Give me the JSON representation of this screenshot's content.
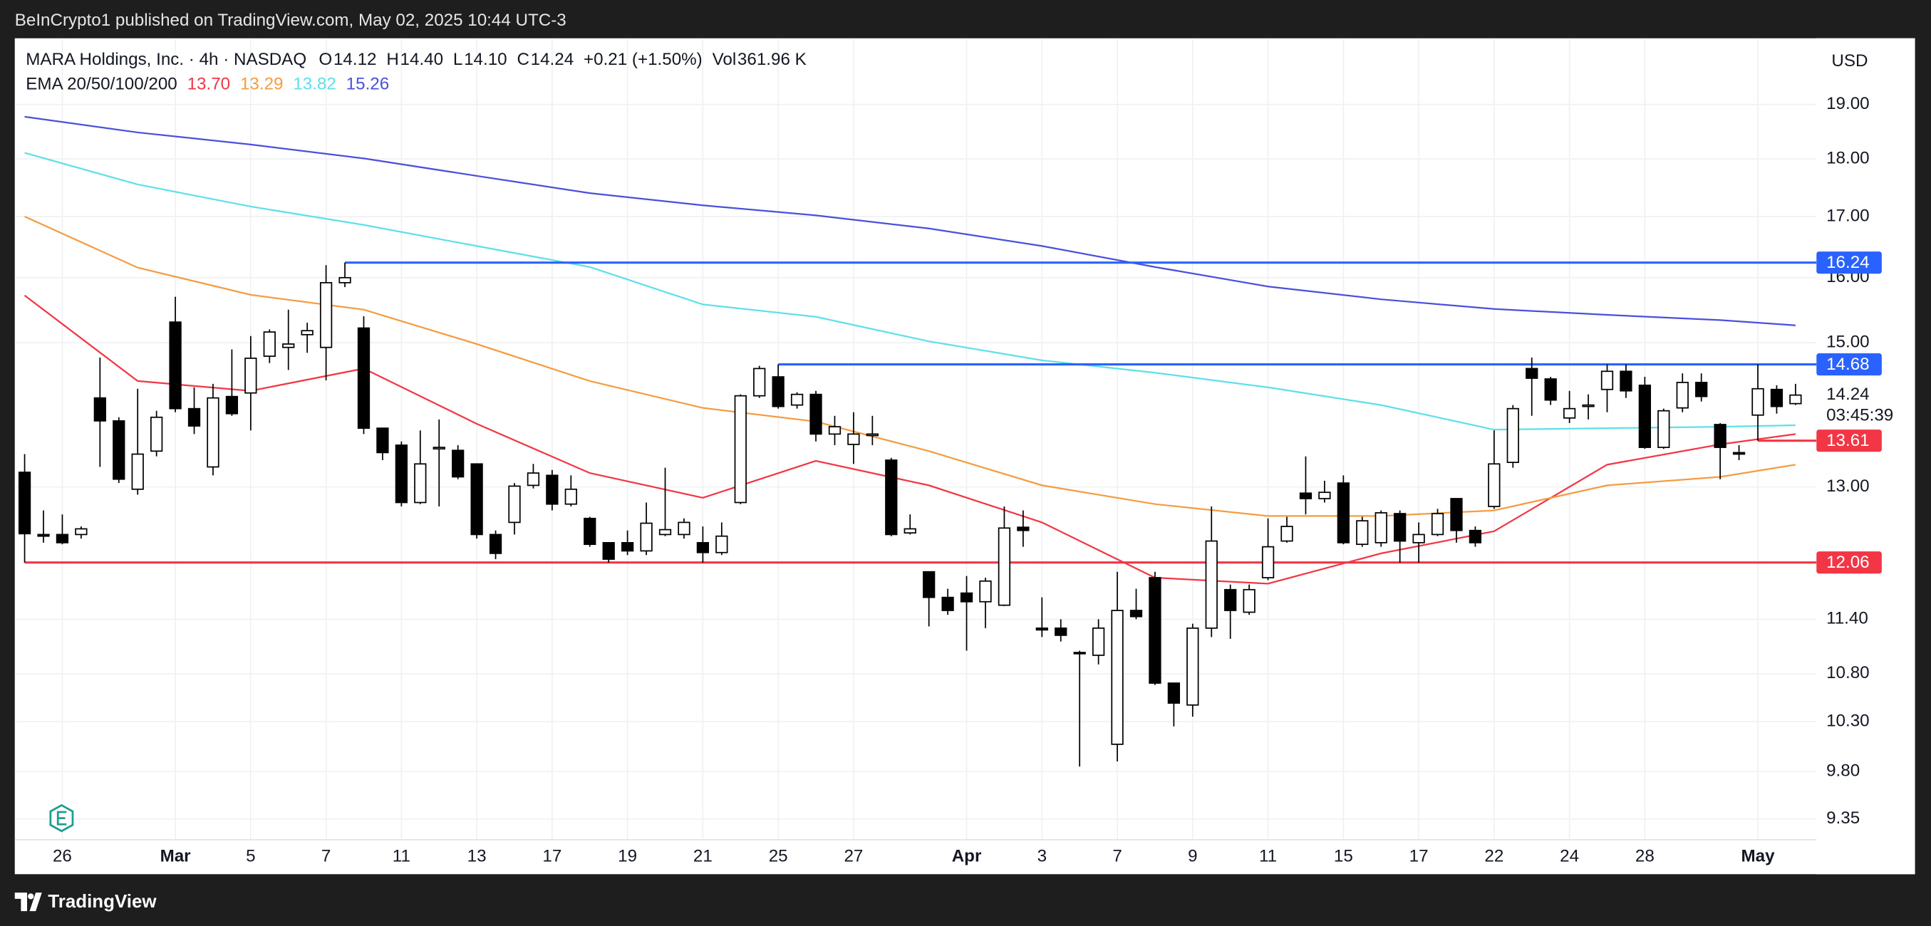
{
  "header": {
    "published": "BeInCrypto1 published on TradingView.com, May 02, 2025 10:44 UTC-3"
  },
  "legend": {
    "symbol": "MARA Holdings, Inc. · 4h · NASDAQ",
    "fields": [
      {
        "key": "O",
        "value": "14.12"
      },
      {
        "key": "H",
        "value": "14.40"
      },
      {
        "key": "L",
        "value": "14.10"
      },
      {
        "key": "C",
        "value": "14.24"
      }
    ],
    "change": "+0.21 (+1.50%)",
    "vol_key": "Vol",
    "vol": "361.96 K",
    "ema_label": "EMA 20/50/100/200"
  },
  "footer": {
    "brand": "TradingView"
  },
  "chart_data": {
    "type": "candlestick",
    "currency": "USD",
    "log_scale": true,
    "grid": true,
    "up_color": "#ffffff",
    "down_color": "#000000",
    "ylim": [
      9.16,
      20.29
    ],
    "yticks": [
      {
        "value": 19,
        "label": "19.00"
      },
      {
        "value": 18,
        "label": "18.00"
      },
      {
        "value": 17,
        "label": "17.00"
      },
      {
        "value": 16,
        "label": "16.00"
      },
      {
        "value": 15,
        "label": "15.00"
      },
      {
        "value": 13,
        "label": "13.00"
      },
      {
        "value": 11.4,
        "label": "11.40"
      },
      {
        "value": 10.8,
        "label": "10.80"
      },
      {
        "value": 10.3,
        "label": "10.30"
      },
      {
        "value": 9.8,
        "label": "9.80"
      },
      {
        "value": 9.35,
        "label": "9.35"
      }
    ],
    "xlim": [
      0,
      94
    ],
    "xticks": [
      {
        "value": 2,
        "label": "26"
      },
      {
        "value": 8,
        "label": "Mar"
      },
      {
        "value": 12,
        "label": "5"
      },
      {
        "value": 16,
        "label": "7"
      },
      {
        "value": 20,
        "label": "11"
      },
      {
        "value": 24,
        "label": "13"
      },
      {
        "value": 28,
        "label": "17"
      },
      {
        "value": 32,
        "label": "19"
      },
      {
        "value": 36,
        "label": "21"
      },
      {
        "value": 40,
        "label": "25"
      },
      {
        "value": 44,
        "label": "27"
      },
      {
        "value": 50,
        "label": "Apr"
      },
      {
        "value": 54,
        "label": "3"
      },
      {
        "value": 58,
        "label": "7"
      },
      {
        "value": 62,
        "label": "9"
      },
      {
        "value": 66,
        "label": "11"
      },
      {
        "value": 70,
        "label": "15"
      },
      {
        "value": 74,
        "label": "17"
      },
      {
        "value": 78,
        "label": "22"
      },
      {
        "value": 82,
        "label": "24"
      },
      {
        "value": 86,
        "label": "28"
      },
      {
        "value": 92,
        "label": "May"
      }
    ],
    "open": [
      13.19,
      12.4,
      12.4,
      12.4,
      14.2,
      13.88,
      12.97,
      13.47,
      15.31,
      14.05,
      13.26,
      14.22,
      14.27,
      14.8,
      14.93,
      15.12,
      14.93,
      15.92,
      15.22,
      13.78,
      13.55,
      12.8,
      13.5,
      13.48,
      13.3,
      12.4,
      12.55,
      13.02,
      13.15,
      12.78,
      12.6,
      12.3,
      12.3,
      12.2,
      12.4,
      12.4,
      12.3,
      12.18,
      12.8,
      14.23,
      14.5,
      14.1,
      14.25,
      13.7,
      13.56,
      13.68,
      13.35,
      12.42,
      11.95,
      11.65,
      11.7,
      11.6,
      11.56,
      12.49,
      11.3,
      11.3,
      11.03,
      11.0,
      10.07,
      11.5,
      11.88,
      10.7,
      10.47,
      11.3,
      11.74,
      11.48,
      11.88,
      12.32,
      12.92,
      12.85,
      13.05,
      12.28,
      12.3,
      12.66,
      12.3,
      12.4,
      12.85,
      12.45,
      12.75,
      13.32,
      14.62,
      14.47,
      13.92,
      14.08,
      14.32,
      14.58,
      14.38,
      13.52,
      14.06,
      14.42,
      13.83,
      13.45,
      13.96,
      14.32,
      14.12
    ],
    "high": [
      13.43,
      12.7,
      12.65,
      12.5,
      14.78,
      13.93,
      14.33,
      14.02,
      15.7,
      14.35,
      14.4,
      14.9,
      15.1,
      15.2,
      15.5,
      15.3,
      16.2,
      16.24,
      15.4,
      13.78,
      13.6,
      13.75,
      13.9,
      13.55,
      13.3,
      12.45,
      13.05,
      13.3,
      13.22,
      13.15,
      12.62,
      12.3,
      12.45,
      12.8,
      13.25,
      12.6,
      12.5,
      12.55,
      14.25,
      14.66,
      14.68,
      14.28,
      14.3,
      13.95,
      14.0,
      13.95,
      13.38,
      12.65,
      11.95,
      11.75,
      11.9,
      11.88,
      12.75,
      12.7,
      11.65,
      11.4,
      11.05,
      11.4,
      11.95,
      11.75,
      11.95,
      10.7,
      11.35,
      12.75,
      11.8,
      11.8,
      12.6,
      12.62,
      13.4,
      13.08,
      13.15,
      12.62,
      12.7,
      12.7,
      12.55,
      12.72,
      12.85,
      12.5,
      13.75,
      14.1,
      14.78,
      14.5,
      14.3,
      14.25,
      14.68,
      14.68,
      14.5,
      14.05,
      14.55,
      14.55,
      13.85,
      13.55,
      14.68,
      14.38,
      14.4
    ],
    "low": [
      12.06,
      12.3,
      12.28,
      12.35,
      13.26,
      13.05,
      12.9,
      13.4,
      14.0,
      13.7,
      13.15,
      13.95,
      13.75,
      14.7,
      14.6,
      14.85,
      14.45,
      15.85,
      13.7,
      13.35,
      12.75,
      12.78,
      12.75,
      13.1,
      12.35,
      12.1,
      12.4,
      12.98,
      12.7,
      12.75,
      12.25,
      12.06,
      12.15,
      12.15,
      12.38,
      12.35,
      12.06,
      12.15,
      12.78,
      14.2,
      14.05,
      14.05,
      13.6,
      13.55,
      13.3,
      13.55,
      12.38,
      12.4,
      11.32,
      11.45,
      11.05,
      11.3,
      11.55,
      12.25,
      11.2,
      11.15,
      9.85,
      10.9,
      9.9,
      11.4,
      10.68,
      10.25,
      10.35,
      11.2,
      11.18,
      11.45,
      11.85,
      12.3,
      12.65,
      12.8,
      12.28,
      12.25,
      12.25,
      12.06,
      12.06,
      12.38,
      12.3,
      12.25,
      12.72,
      13.25,
      13.95,
      14.1,
      13.85,
      13.9,
      14.0,
      14.2,
      13.5,
      13.5,
      14.0,
      14.15,
      13.1,
      13.35,
      13.61,
      13.98,
      14.1
    ],
    "close": [
      12.41,
      12.38,
      12.3,
      12.47,
      13.88,
      13.1,
      13.43,
      13.93,
      14.05,
      13.81,
      14.2,
      13.98,
      14.77,
      15.16,
      14.98,
      15.18,
      15.92,
      16.0,
      13.78,
      13.45,
      12.8,
      13.3,
      13.52,
      13.13,
      12.4,
      12.17,
      13.01,
      13.18,
      12.78,
      12.97,
      12.28,
      12.1,
      12.2,
      12.54,
      12.46,
      12.55,
      12.18,
      12.38,
      14.23,
      14.62,
      14.08,
      14.25,
      13.7,
      13.8,
      13.7,
      13.7,
      12.4,
      12.47,
      11.65,
      11.5,
      11.6,
      11.84,
      12.48,
      12.45,
      11.28,
      11.22,
      11.02,
      11.3,
      11.5,
      11.43,
      10.7,
      10.49,
      11.3,
      12.32,
      11.5,
      11.74,
      12.25,
      12.5,
      12.85,
      12.93,
      12.3,
      12.57,
      12.67,
      12.32,
      12.4,
      12.66,
      12.45,
      12.3,
      13.3,
      14.05,
      14.48,
      14.17,
      14.05,
      14.1,
      14.58,
      14.3,
      13.52,
      14.02,
      14.42,
      14.22,
      13.52,
      13.43,
      14.33,
      14.08,
      14.24
    ],
    "series": [
      {
        "color": "#f23645",
        "x": [
          0,
          6,
          12,
          18,
          24,
          30,
          36,
          42,
          48,
          54,
          60,
          66,
          72,
          78,
          84,
          90,
          94
        ],
        "values": [
          15.72,
          14.44,
          14.3,
          14.62,
          13.84,
          13.18,
          12.86,
          13.34,
          13.02,
          12.55,
          11.88,
          11.81,
          12.17,
          12.44,
          13.29,
          13.56,
          13.7
        ],
        "value_labels": [
          null,
          null,
          null,
          null,
          null,
          null,
          null,
          null,
          null,
          null,
          null,
          null,
          null,
          null,
          null,
          null,
          "13.70"
        ]
      },
      {
        "color": "#f59c42",
        "x": [
          0,
          6,
          12,
          18,
          24,
          30,
          36,
          42,
          48,
          54,
          60,
          66,
          72,
          78,
          84,
          90,
          94
        ],
        "values": [
          17.0,
          16.16,
          15.73,
          15.5,
          14.98,
          14.44,
          14.06,
          13.87,
          13.47,
          13.02,
          12.78,
          12.63,
          12.63,
          12.7,
          13.02,
          13.13,
          13.29
        ],
        "value_labels": [
          null,
          null,
          null,
          null,
          null,
          null,
          null,
          null,
          null,
          null,
          null,
          null,
          null,
          null,
          null,
          null,
          "13.29"
        ]
      },
      {
        "color": "#5ee0ea",
        "x": [
          0,
          6,
          12,
          18,
          24,
          30,
          36,
          42,
          48,
          54,
          60,
          66,
          72,
          78,
          84,
          90,
          94
        ],
        "values": [
          18.11,
          17.55,
          17.17,
          16.86,
          16.51,
          16.17,
          15.58,
          15.39,
          15.02,
          14.74,
          14.56,
          14.35,
          14.1,
          13.76,
          13.78,
          13.8,
          13.82
        ],
        "value_labels": [
          null,
          null,
          null,
          null,
          null,
          null,
          null,
          null,
          null,
          null,
          null,
          null,
          null,
          null,
          null,
          null,
          "13.82"
        ]
      },
      {
        "color": "#4a4fdc",
        "x": [
          0,
          6,
          12,
          18,
          24,
          30,
          36,
          42,
          48,
          54,
          60,
          66,
          72,
          78,
          84,
          90,
          94
        ],
        "values": [
          18.77,
          18.48,
          18.26,
          18.01,
          17.7,
          17.4,
          17.19,
          17.02,
          16.8,
          16.51,
          16.17,
          15.86,
          15.66,
          15.51,
          15.42,
          15.34,
          15.26
        ],
        "value_labels": [
          null,
          null,
          null,
          null,
          null,
          null,
          null,
          null,
          null,
          null,
          null,
          null,
          null,
          null,
          null,
          null,
          "15.26"
        ]
      }
    ],
    "levels": [
      {
        "value": 16.24,
        "label": "16.24",
        "start": 17,
        "color": "#2962ff"
      },
      {
        "value": 14.68,
        "label": "14.68",
        "start": 40,
        "color": "#2962ff"
      },
      {
        "value": 13.61,
        "label": "13.61",
        "start": 92,
        "color": "#f23645"
      },
      {
        "value": 12.06,
        "label": "12.06",
        "start": 0,
        "color": "#f23645"
      }
    ],
    "last_price": {
      "value": 14.24,
      "label": "14.24",
      "countdown": "03:45:39"
    }
  }
}
